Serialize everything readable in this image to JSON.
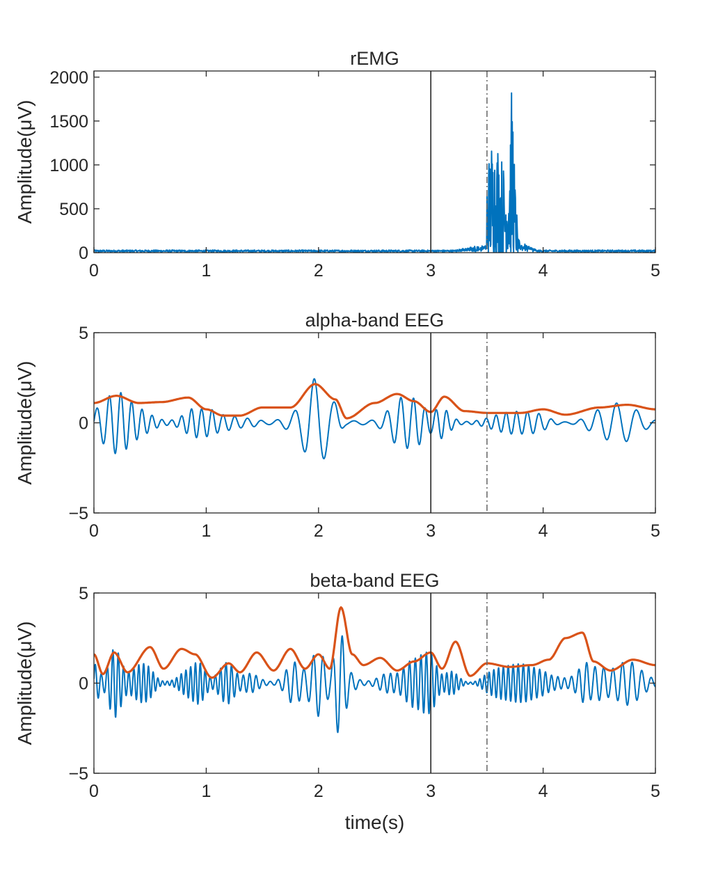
{
  "chart_data": [
    {
      "type": "line",
      "title": "rEMG",
      "xlabel": "",
      "ylabel": "Amplitude(μV)",
      "xlim": [
        0,
        5
      ],
      "ylim": [
        0,
        2070
      ],
      "xticks": [
        "0",
        "1",
        "2",
        "3",
        "4",
        "5"
      ],
      "yticks": [
        "0",
        "500",
        "1000",
        "1500",
        "2000"
      ],
      "ytick_values": [
        0,
        500,
        1000,
        1500,
        2000
      ],
      "markers": [
        {
          "x": 3.0,
          "style": "solid",
          "color": "#262626"
        },
        {
          "x": 3.5,
          "style": "dash-dot",
          "color": "#6b6b6b"
        }
      ],
      "series": [
        {
          "color": "#0072bd",
          "kind": "emg",
          "baseline_level": 25,
          "burst_start": 3.5,
          "burst_end": 3.78,
          "x": [
            3.5,
            3.54,
            3.58,
            3.62,
            3.64,
            3.66,
            3.7,
            3.73,
            3.75,
            3.78
          ],
          "y": [
            1000,
            1350,
            1400,
            1250,
            1050,
            1000,
            1450,
            2070,
            850,
            150
          ]
        }
      ]
    },
    {
      "type": "line",
      "title": "alpha-band EEG",
      "xlabel": "",
      "ylabel": "Amplitude(μV)",
      "xlim": [
        0,
        5
      ],
      "ylim": [
        -5,
        5
      ],
      "xticks": [
        "0",
        "1",
        "2",
        "3",
        "4",
        "5"
      ],
      "yticks": [
        "-5",
        "0",
        "5"
      ],
      "ytick_values": [
        -5,
        0,
        5
      ],
      "markers": [
        {
          "x": 3.0,
          "style": "solid",
          "color": "#262626"
        },
        {
          "x": 3.5,
          "style": "dash-dot",
          "color": "#6b6b6b"
        }
      ],
      "series": [
        {
          "color": "#0072bd",
          "kind": "oscillation",
          "freq_hz": 10,
          "envelope_ref": 1
        },
        {
          "color": "#d95319",
          "kind": "envelope",
          "x": [
            0,
            0.2,
            0.4,
            0.6,
            0.84,
            1.0,
            1.15,
            1.3,
            1.5,
            1.75,
            1.97,
            2.15,
            2.25,
            2.5,
            2.7,
            2.85,
            3.0,
            3.12,
            3.3,
            3.5,
            3.8,
            4.0,
            4.2,
            4.5,
            4.75,
            5.0
          ],
          "y": [
            1.1,
            1.5,
            1.1,
            1.15,
            1.4,
            0.75,
            0.4,
            0.4,
            0.85,
            0.85,
            2.15,
            1.3,
            0.25,
            1.1,
            1.6,
            1.2,
            0.6,
            1.45,
            0.65,
            0.55,
            0.55,
            0.75,
            0.45,
            0.85,
            1.0,
            0.75
          ]
        }
      ]
    },
    {
      "type": "line",
      "title": "beta-band EEG",
      "xlabel": "time(s)",
      "ylabel": "Amplitude(μV)",
      "xlim": [
        0,
        5
      ],
      "ylim": [
        -5,
        5
      ],
      "xticks": [
        "0",
        "1",
        "2",
        "3",
        "4",
        "5"
      ],
      "yticks": [
        "-5",
        "0",
        "5"
      ],
      "ytick_values": [
        -5,
        0,
        5
      ],
      "markers": [
        {
          "x": 3.0,
          "style": "solid",
          "color": "#262626"
        },
        {
          "x": 3.5,
          "style": "dash-dot",
          "color": "#6b6b6b"
        }
      ],
      "series": [
        {
          "color": "#0072bd",
          "kind": "oscillation",
          "freq_hz": 21,
          "envelope_ref": 1
        },
        {
          "color": "#d95319",
          "kind": "envelope",
          "x": [
            0,
            0.08,
            0.18,
            0.3,
            0.5,
            0.62,
            0.78,
            0.9,
            1.05,
            1.2,
            1.3,
            1.45,
            1.6,
            1.75,
            1.88,
            2.0,
            2.1,
            2.2,
            2.3,
            2.4,
            2.55,
            2.7,
            2.85,
            3.0,
            3.1,
            3.22,
            3.35,
            3.5,
            3.7,
            3.9,
            4.05,
            4.2,
            4.35,
            4.45,
            4.6,
            4.8,
            5.0
          ],
          "y": [
            1.6,
            0.5,
            1.7,
            0.6,
            2.0,
            0.8,
            1.9,
            1.6,
            0.3,
            1.1,
            0.6,
            1.7,
            0.7,
            1.9,
            0.8,
            1.6,
            0.8,
            4.2,
            1.6,
            1.0,
            1.4,
            0.7,
            1.2,
            1.7,
            0.8,
            2.3,
            0.4,
            1.1,
            0.9,
            1.0,
            1.3,
            2.5,
            2.8,
            1.2,
            0.7,
            1.3,
            1.0
          ]
        }
      ]
    }
  ]
}
